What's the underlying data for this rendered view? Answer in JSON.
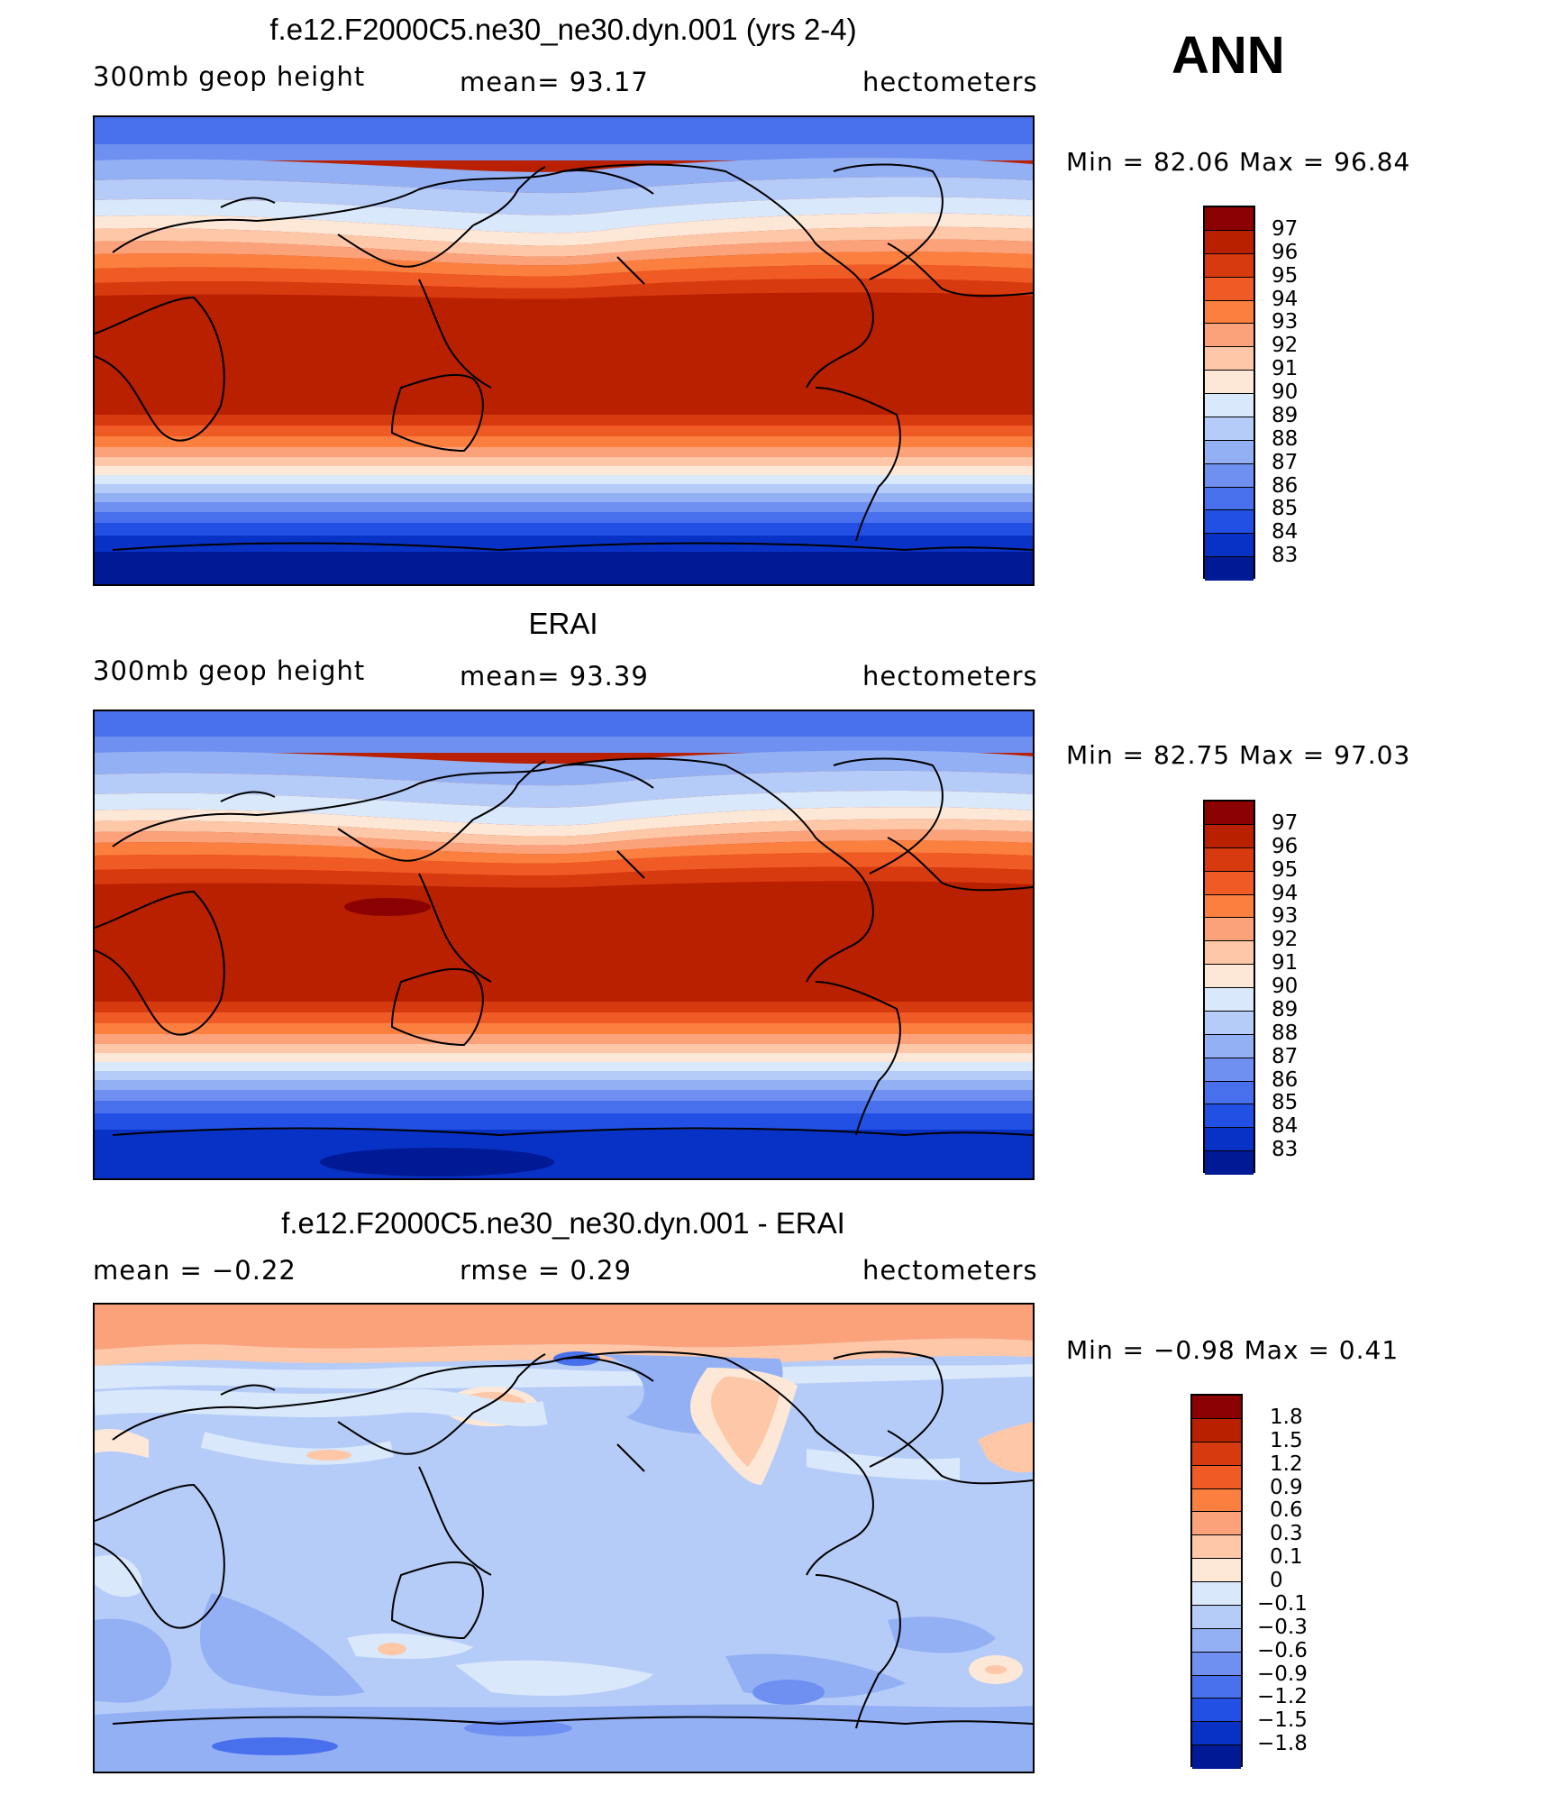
{
  "season_label": "ANN",
  "panels": [
    {
      "title": "f.e12.F2000C5.ne30_ne30.dyn.001 (yrs 2-4)",
      "left_label": "300mb geop height",
      "center_label": "mean=   93.17",
      "right_label": "hectometers",
      "min_max": "Min =   82.06 Max =   96.84"
    },
    {
      "title": "ERAI",
      "left_label": "300mb geop height",
      "center_label": "mean=   93.39",
      "right_label": "hectometers",
      "min_max": "Min =   82.75 Max =   97.03"
    },
    {
      "title": "f.e12.F2000C5.ne30_ne30.dyn.001 - ERAI",
      "left_label": "mean =   −0.22",
      "center_label": "rmse =    0.29",
      "right_label": "hectometers",
      "min_max": "Min =   −0.98 Max =    0.41"
    }
  ],
  "chart_data": [
    {
      "type": "heatmap",
      "title": "f.e12.F2000C5.ne30_ne30.dyn.001 (yrs 2-4)",
      "variable": "300mb geop height",
      "units": "hectometers",
      "mean": 93.17,
      "min": 82.06,
      "max": 96.84,
      "colorbar_levels": [
        83,
        84,
        85,
        86,
        87,
        88,
        89,
        90,
        91,
        92,
        93,
        94,
        95,
        96,
        97
      ],
      "colorbar_labels": [
        "97",
        "96",
        "95",
        "94",
        "93",
        "92",
        "91",
        "90",
        "89",
        "88",
        "87",
        "86",
        "85",
        "84",
        "83"
      ],
      "colors": [
        "#8b0000",
        "#b82000",
        "#d83a10",
        "#f05a25",
        "#fb8040",
        "#fca27a",
        "#fdc7a8",
        "#fde8d8",
        "#d9e8fb",
        "#b6ccf8",
        "#94b0f5",
        "#6f90f0",
        "#4870ec",
        "#2250e5",
        "#0832c5",
        "#001a96"
      ]
    },
    {
      "type": "heatmap",
      "title": "ERAI",
      "variable": "300mb geop height",
      "units": "hectometers",
      "mean": 93.39,
      "min": 82.75,
      "max": 97.03,
      "colorbar_levels": [
        83,
        84,
        85,
        86,
        87,
        88,
        89,
        90,
        91,
        92,
        93,
        94,
        95,
        96,
        97
      ],
      "colorbar_labels": [
        "97",
        "96",
        "95",
        "94",
        "93",
        "92",
        "91",
        "90",
        "89",
        "88",
        "87",
        "86",
        "85",
        "84",
        "83"
      ],
      "colors": [
        "#8b0000",
        "#b82000",
        "#d83a10",
        "#f05a25",
        "#fb8040",
        "#fca27a",
        "#fdc7a8",
        "#fde8d8",
        "#d9e8fb",
        "#b6ccf8",
        "#94b0f5",
        "#6f90f0",
        "#4870ec",
        "#2250e5",
        "#0832c5",
        "#001a96"
      ]
    },
    {
      "type": "heatmap",
      "title": "f.e12.F2000C5.ne30_ne30.dyn.001 - ERAI",
      "units": "hectometers",
      "mean": -0.22,
      "rmse": 0.29,
      "min": -0.98,
      "max": 0.41,
      "colorbar_levels": [
        -1.8,
        -1.5,
        -1.2,
        -0.9,
        -0.6,
        -0.3,
        -0.1,
        0,
        0.1,
        0.3,
        0.6,
        0.9,
        1.2,
        1.5,
        1.8
      ],
      "colorbar_labels": [
        "1.8",
        "1.5",
        "1.2",
        "0.9",
        "0.6",
        "0.3",
        "0.1",
        "0",
        "−0.1",
        "−0.3",
        "−0.6",
        "−0.9",
        "−1.2",
        "−1.5",
        "−1.8"
      ],
      "colors": [
        "#8b0000",
        "#b82000",
        "#d83a10",
        "#f05a25",
        "#fb8040",
        "#fca27a",
        "#fdc7a8",
        "#fde8d8",
        "#d9e8fb",
        "#b6ccf8",
        "#94b0f5",
        "#6f90f0",
        "#4870ec",
        "#2250e5",
        "#0832c5",
        "#001a96"
      ]
    }
  ]
}
